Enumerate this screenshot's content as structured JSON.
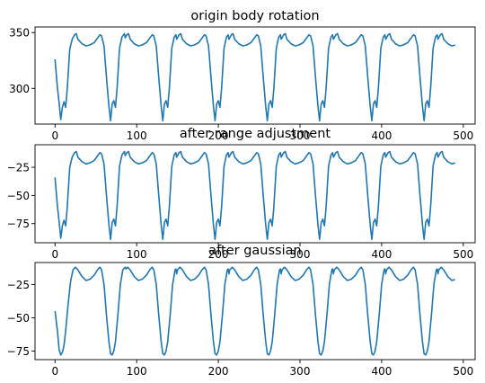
{
  "chart_data": [
    {
      "type": "line",
      "title": "origin body rotation",
      "xlabel": "",
      "ylabel": "",
      "xlim": [
        -24.5,
        514.5
      ],
      "ylim": [
        268,
        355
      ],
      "xticks": [
        0,
        100,
        200,
        300,
        400,
        500
      ],
      "yticks": [
        300,
        350
      ],
      "grid": false,
      "series_color": "#1f77b4",
      "keypoints": [
        [
          0,
          326
        ],
        [
          3,
          300
        ],
        [
          5,
          287
        ],
        [
          7,
          272
        ],
        [
          9,
          283
        ],
        [
          11,
          288
        ],
        [
          13,
          283
        ],
        [
          15,
          300
        ],
        [
          18,
          335
        ],
        [
          21,
          344
        ],
        [
          24,
          348
        ],
        [
          26,
          349
        ],
        [
          28,
          344
        ],
        [
          33,
          340
        ],
        [
          38,
          338
        ],
        [
          43,
          339
        ],
        [
          48,
          341
        ],
        [
          53,
          346
        ],
        [
          55,
          348
        ],
        [
          57,
          347
        ],
        [
          60,
          338
        ],
        [
          63,
          310
        ],
        [
          66,
          284
        ],
        [
          68,
          271
        ],
        [
          70,
          286
        ],
        [
          72,
          289
        ],
        [
          74,
          283
        ],
        [
          76,
          300
        ],
        [
          79,
          336
        ],
        [
          82,
          346
        ],
        [
          85,
          349
        ]
      ],
      "period": 64,
      "length": 490
    },
    {
      "type": "line",
      "title": "after range adjustment",
      "xlabel": "",
      "ylabel": "",
      "xlim": [
        -24.5,
        514.5
      ],
      "ylim": [
        -92,
        -5
      ],
      "xticks": [
        0,
        100,
        200,
        300,
        400,
        500
      ],
      "yticks": [
        -25,
        -50,
        -75
      ],
      "grid": false,
      "series_color": "#1f77b4",
      "keypoints": [
        [
          0,
          -34
        ],
        [
          3,
          -60
        ],
        [
          5,
          -73
        ],
        [
          7,
          -88
        ],
        [
          9,
          -77
        ],
        [
          11,
          -72
        ],
        [
          13,
          -77
        ],
        [
          15,
          -60
        ],
        [
          18,
          -25
        ],
        [
          21,
          -16
        ],
        [
          24,
          -12
        ],
        [
          26,
          -11
        ],
        [
          28,
          -16
        ],
        [
          33,
          -20
        ],
        [
          38,
          -22
        ],
        [
          43,
          -21
        ],
        [
          48,
          -19
        ],
        [
          53,
          -14
        ],
        [
          55,
          -12
        ],
        [
          57,
          -13
        ],
        [
          60,
          -22
        ],
        [
          63,
          -50
        ],
        [
          66,
          -76
        ],
        [
          68,
          -89
        ],
        [
          70,
          -74
        ],
        [
          72,
          -71
        ],
        [
          74,
          -77
        ],
        [
          76,
          -60
        ],
        [
          79,
          -24
        ],
        [
          82,
          -14
        ],
        [
          85,
          -11
        ]
      ],
      "period": 64,
      "length": 490
    },
    {
      "type": "line",
      "title": "after gaussian",
      "xlabel": "",
      "ylabel": "",
      "xlim": [
        -24.5,
        514.5
      ],
      "ylim": [
        -81.5,
        -8.5
      ],
      "xticks": [
        0,
        100,
        200,
        300,
        400,
        500
      ],
      "yticks": [
        -25,
        -50,
        -75
      ],
      "grid": false,
      "series_color": "#1f77b4",
      "keypoints": [
        [
          0,
          -45
        ],
        [
          3,
          -60
        ],
        [
          5,
          -74
        ],
        [
          7,
          -78
        ],
        [
          9,
          -76
        ],
        [
          11,
          -71
        ],
        [
          13,
          -60
        ],
        [
          16,
          -40
        ],
        [
          19,
          -23
        ],
        [
          22,
          -14
        ],
        [
          25,
          -12
        ],
        [
          28,
          -14
        ],
        [
          33,
          -19
        ],
        [
          38,
          -22
        ],
        [
          43,
          -21
        ],
        [
          48,
          -18
        ],
        [
          52,
          -14
        ],
        [
          55,
          -12
        ],
        [
          57,
          -14
        ],
        [
          60,
          -25
        ],
        [
          63,
          -48
        ],
        [
          66,
          -68
        ],
        [
          68,
          -77
        ],
        [
          70,
          -78
        ],
        [
          72,
          -75
        ],
        [
          74,
          -68
        ],
        [
          77,
          -48
        ],
        [
          80,
          -25
        ],
        [
          83,
          -14
        ],
        [
          86,
          -12
        ]
      ],
      "period": 64,
      "length": 490
    }
  ]
}
